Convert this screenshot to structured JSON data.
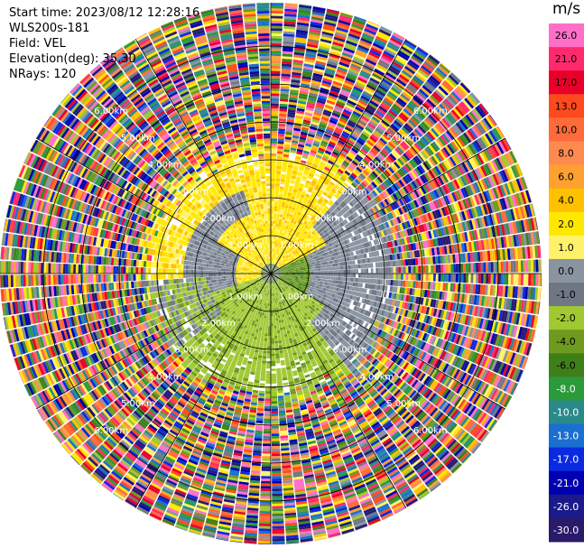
{
  "header": {
    "start_time": "Start time: 2023/08/12 12:28:16",
    "instrument": "WLS200s-181",
    "field": "Field: VEL",
    "elevation": "Elevation(deg): 35.30",
    "nrays": "NRays: 120"
  },
  "chart_data": {
    "type": "ppi-polar",
    "field": "VEL",
    "units": "m/s",
    "nrays": 120,
    "range_rings_km": [
      1,
      2,
      3,
      4,
      5,
      6
    ],
    "ring_labels": [
      "1.00km",
      "2.00km",
      "3.00km",
      "4.00km",
      "5.00km",
      "6.00km"
    ],
    "colorbar": {
      "unit_label": "m/s",
      "ticks": [
        "26.0",
        "21.0",
        "17.0",
        "13.0",
        "10.0",
        "8.0",
        "6.0",
        "4.0",
        "2.0",
        "1.0",
        "0.0",
        "-1.0",
        "-2.0",
        "-4.0",
        "-6.0",
        "-8.0",
        "-10.0",
        "-13.0",
        "-17.0",
        "-21.0",
        "-26.0",
        "-30.0"
      ],
      "colors": [
        "#ff6fc8",
        "#ff2a6d",
        "#e8002a",
        "#ff4a1e",
        "#ff6a3a",
        "#ff8a50",
        "#ffa030",
        "#ffc000",
        "#ffe800",
        "#fff26a",
        "#8a93a0",
        "#6f7785",
        "#a0c830",
        "#6e9a1f",
        "#3f7f1a",
        "#2a9a3a",
        "#2a8a8a",
        "#1a6fd0",
        "#0a2ae0",
        "#0000b0",
        "#1a1a8a",
        "#2a1a6a"
      ]
    },
    "rings_dominant": [
      {
        "max_km": 0.3,
        "note": "near-zero core"
      },
      {
        "max_km": 1.5,
        "north": "yellow (+2..+6)",
        "south": "green (-2..-4)",
        "west_band": "gray (0..-1)"
      },
      {
        "max_km": 3.0,
        "north": "yellow",
        "east": "gray",
        "south": "green"
      },
      {
        "max_km": 6.6,
        "note": "noise / random colors"
      }
    ]
  }
}
